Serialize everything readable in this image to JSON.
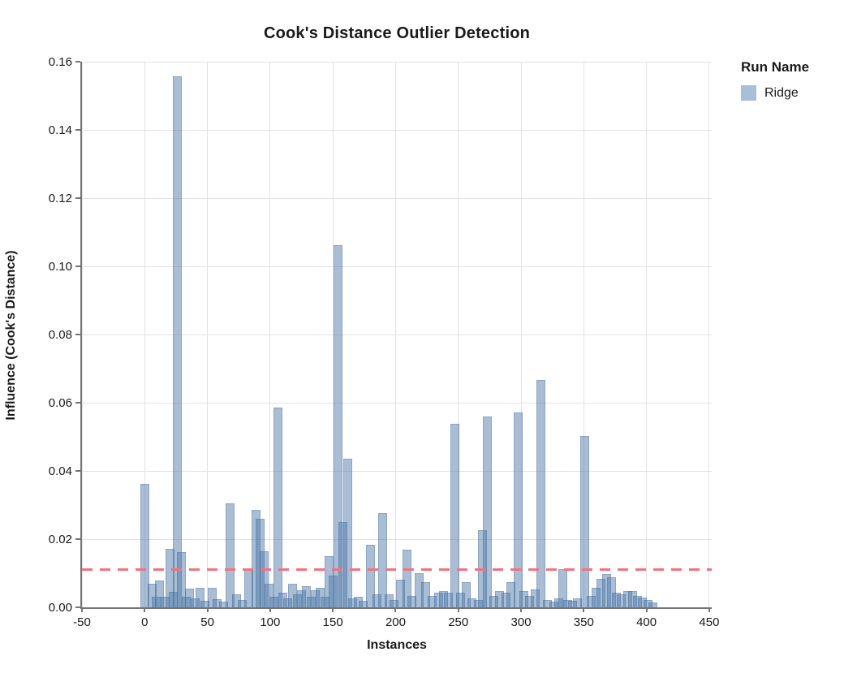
{
  "title": "Cook's Distance Outlier Detection",
  "legend": {
    "title": "Run Name",
    "items": [
      {
        "label": "Ridge",
        "color": "#a9bed8"
      }
    ]
  },
  "colors": {
    "bar_fill": "#4c78a8",
    "bar_opacity": 0.48,
    "bar_edge": "rgba(60,100,150,0.28)",
    "threshold": "#f4717f",
    "grid": "#e2e2e2",
    "axis": "#757575",
    "text": "#1a1a1a"
  },
  "chart_data": {
    "type": "bar",
    "title": "Cook's Distance Outlier Detection",
    "xlabel": "Instances",
    "ylabel": "Influence (Cook's Distance)",
    "xlim": [
      -50,
      452
    ],
    "ylim": [
      0,
      0.16
    ],
    "x_ticks": [
      -50,
      0,
      50,
      100,
      150,
      200,
      250,
      300,
      350,
      400,
      450
    ],
    "y_ticks": [
      0.0,
      0.02,
      0.04,
      0.06,
      0.08,
      0.1,
      0.12,
      0.14,
      0.16
    ],
    "grid": true,
    "legend_position": "right",
    "threshold_line": {
      "value": 0.011,
      "style": "dashed",
      "color": "#f4717f"
    },
    "series": [
      {
        "name": "Ridge",
        "points": [
          [
            0,
            0.0362
          ],
          [
            6,
            0.007
          ],
          [
            9,
            0.0032
          ],
          [
            12,
            0.0078
          ],
          [
            16,
            0.003
          ],
          [
            20,
            0.0172
          ],
          [
            23,
            0.0045
          ],
          [
            26,
            0.1557
          ],
          [
            29,
            0.0163
          ],
          [
            33,
            0.0032
          ],
          [
            36,
            0.0055
          ],
          [
            40,
            0.0026
          ],
          [
            44,
            0.0058
          ],
          [
            48,
            0.002
          ],
          [
            54,
            0.0058
          ],
          [
            58,
            0.0024
          ],
          [
            63,
            0.0016
          ],
          [
            68,
            0.0305
          ],
          [
            73,
            0.0038
          ],
          [
            78,
            0.0022
          ],
          [
            83,
            0.011
          ],
          [
            89,
            0.0285
          ],
          [
            92,
            0.026
          ],
          [
            95,
            0.0165
          ],
          [
            99,
            0.0068
          ],
          [
            103,
            0.003
          ],
          [
            106,
            0.0586
          ],
          [
            110,
            0.0042
          ],
          [
            114,
            0.0026
          ],
          [
            118,
            0.0068
          ],
          [
            122,
            0.0038
          ],
          [
            125,
            0.0049
          ],
          [
            129,
            0.0063
          ],
          [
            133,
            0.0032
          ],
          [
            136,
            0.0051
          ],
          [
            140,
            0.0058
          ],
          [
            144,
            0.003
          ],
          [
            147,
            0.015
          ],
          [
            150,
            0.0092
          ],
          [
            154,
            0.1063
          ],
          [
            158,
            0.0251
          ],
          [
            162,
            0.0436
          ],
          [
            166,
            0.0027
          ],
          [
            170,
            0.003
          ],
          [
            174,
            0.002
          ],
          [
            180,
            0.0184
          ],
          [
            185,
            0.0038
          ],
          [
            190,
            0.0276
          ],
          [
            195,
            0.0038
          ],
          [
            199,
            0.0022
          ],
          [
            204,
            0.008
          ],
          [
            209,
            0.017
          ],
          [
            213,
            0.0033
          ],
          [
            219,
            0.01
          ],
          [
            224,
            0.0075
          ],
          [
            229,
            0.0033
          ],
          [
            234,
            0.0043
          ],
          [
            238,
            0.0048
          ],
          [
            242,
            0.0043
          ],
          [
            247,
            0.0538
          ],
          [
            252,
            0.0043
          ],
          [
            256,
            0.0075
          ],
          [
            261,
            0.0027
          ],
          [
            266,
            0.0022
          ],
          [
            269,
            0.0226
          ],
          [
            273,
            0.056
          ],
          [
            278,
            0.0033
          ],
          [
            283,
            0.0048
          ],
          [
            288,
            0.0043
          ],
          [
            292,
            0.0075
          ],
          [
            298,
            0.0571
          ],
          [
            302,
            0.0048
          ],
          [
            307,
            0.0033
          ],
          [
            311,
            0.0053
          ],
          [
            316,
            0.0667
          ],
          [
            321,
            0.0022
          ],
          [
            326,
            0.0017
          ],
          [
            330,
            0.0027
          ],
          [
            333,
            0.0113
          ],
          [
            337,
            0.0022
          ],
          [
            341,
            0.002
          ],
          [
            345,
            0.0027
          ],
          [
            351,
            0.0502
          ],
          [
            356,
            0.0033
          ],
          [
            360,
            0.0058
          ],
          [
            364,
            0.0083
          ],
          [
            368,
            0.0097
          ],
          [
            372,
            0.0087
          ],
          [
            376,
            0.0043
          ],
          [
            380,
            0.0038
          ],
          [
            385,
            0.0048
          ],
          [
            389,
            0.0048
          ],
          [
            393,
            0.0033
          ],
          [
            397,
            0.0028
          ],
          [
            401,
            0.0022
          ],
          [
            405,
            0.0014
          ]
        ]
      }
    ]
  }
}
